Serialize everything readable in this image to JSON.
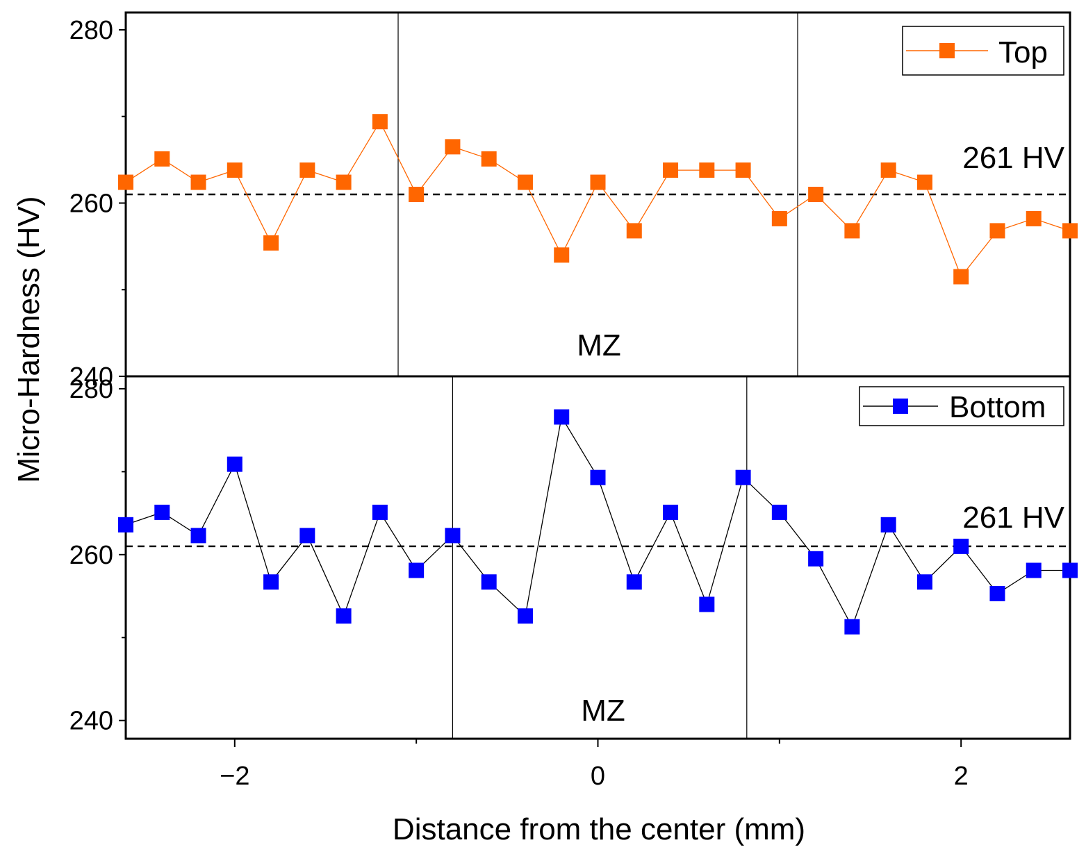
{
  "figure": {
    "xlabel": "Distance from the center (mm)",
    "ylabel": "Micro-Hardness (HV)"
  },
  "chart_data": [
    {
      "type": "line",
      "panel": "top",
      "series": [
        {
          "name": "Top",
          "color": "#ff6600",
          "marker": "square",
          "x": [
            -2.6,
            -2.4,
            -2.2,
            -2.0,
            -1.8,
            -1.6,
            -1.4,
            -1.2,
            -1.0,
            -0.8,
            -0.6,
            -0.4,
            -0.2,
            0.0,
            0.2,
            0.4,
            0.6,
            0.8,
            1.0,
            1.2,
            1.4,
            1.6,
            1.8,
            2.0,
            2.2,
            2.4,
            2.6
          ],
          "values": [
            262.4,
            265.1,
            262.4,
            263.8,
            255.4,
            263.8,
            262.4,
            269.4,
            261.0,
            266.5,
            265.1,
            262.4,
            254.0,
            262.4,
            256.8,
            263.8,
            263.8,
            263.8,
            258.2,
            261.0,
            256.8,
            263.8,
            262.4,
            251.5,
            256.8,
            258.2,
            256.8
          ]
        }
      ],
      "reference_line": {
        "y": 261,
        "label": "261 HV",
        "style": "dashed"
      },
      "region_label": "MZ",
      "region_bounds": [
        -1.1,
        1.1
      ],
      "xlim": [
        -2.6,
        2.6
      ],
      "ylim": [
        240,
        282
      ],
      "yticks": [
        240,
        260,
        280
      ],
      "ytick_labels": [
        "240",
        "260",
        "280"
      ],
      "legend": {
        "label": "Top",
        "position": "top-right"
      }
    },
    {
      "type": "line",
      "panel": "bottom",
      "series": [
        {
          "name": "Bottom",
          "color": "#0000ff",
          "marker": "square",
          "x": [
            -2.6,
            -2.4,
            -2.2,
            -2.0,
            -1.8,
            -1.6,
            -1.4,
            -1.2,
            -1.0,
            -0.8,
            -0.6,
            -0.4,
            -0.2,
            0.0,
            0.2,
            0.4,
            0.6,
            0.8,
            1.0,
            1.2,
            1.4,
            1.6,
            1.8,
            2.0,
            2.2,
            2.4,
            2.6
          ],
          "values": [
            263.6,
            265.1,
            262.3,
            270.9,
            256.7,
            262.3,
            252.6,
            265.1,
            258.1,
            262.3,
            256.7,
            252.6,
            276.6,
            269.3,
            256.7,
            265.1,
            254.0,
            269.3,
            265.1,
            259.5,
            251.3,
            263.6,
            256.7,
            261.0,
            255.3,
            258.1,
            258.1
          ]
        }
      ],
      "reference_line": {
        "y": 261,
        "label": "261 HV",
        "style": "dashed"
      },
      "region_label": "MZ",
      "region_bounds": [
        -0.8,
        0.82
      ],
      "xlim": [
        -2.6,
        2.6
      ],
      "ylim": [
        237.8,
        281.5
      ],
      "yticks": [
        240,
        260,
        280
      ],
      "ytick_labels": [
        "240",
        "260",
        "280"
      ],
      "xticks": [
        -2,
        0,
        2
      ],
      "xtick_labels": [
        "−2",
        "0",
        "2"
      ],
      "legend": {
        "label": "Bottom",
        "position": "top-right"
      }
    }
  ]
}
